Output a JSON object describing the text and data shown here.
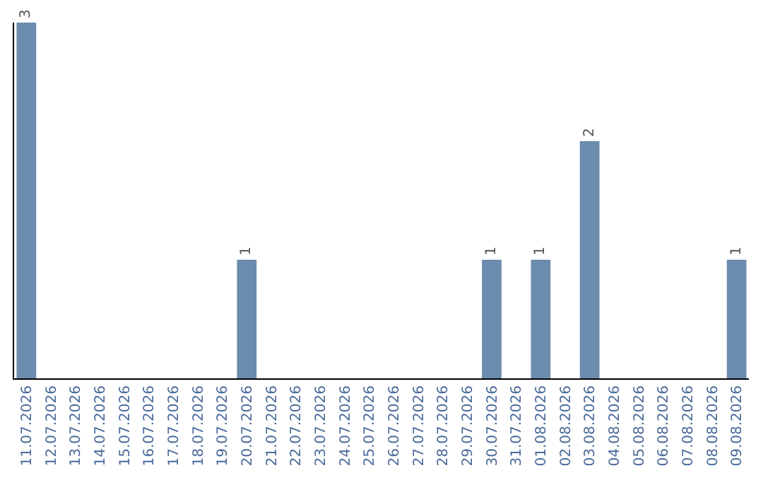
{
  "chart_data": {
    "type": "bar",
    "categories": [
      "11.07.2026",
      "12.07.2026",
      "13.07.2026",
      "14.07.2026",
      "15.07.2026",
      "16.07.2026",
      "17.07.2026",
      "18.07.2026",
      "19.07.2026",
      "20.07.2026",
      "21.07.2026",
      "22.07.2026",
      "23.07.2026",
      "24.07.2026",
      "25.07.2026",
      "26.07.2026",
      "27.07.2026",
      "28.07.2026",
      "29.07.2026",
      "30.07.2026",
      "31.07.2026",
      "01.08.2026",
      "02.08.2026",
      "03.08.2026",
      "04.08.2026",
      "05.08.2026",
      "06.08.2026",
      "07.08.2026",
      "08.08.2026",
      "09.08.2026"
    ],
    "values": [
      3,
      0,
      0,
      0,
      0,
      0,
      0,
      0,
      0,
      1,
      0,
      0,
      0,
      0,
      0,
      0,
      0,
      0,
      0,
      1,
      0,
      1,
      0,
      2,
      0,
      0,
      0,
      0,
      0,
      1
    ],
    "value_labels": [
      "3",
      null,
      null,
      null,
      null,
      null,
      null,
      null,
      null,
      "1",
      null,
      null,
      null,
      null,
      null,
      null,
      null,
      null,
      null,
      "1",
      null,
      "1",
      null,
      "2",
      null,
      null,
      null,
      null,
      null,
      "1"
    ],
    "color": "#6b8cad",
    "ylim": [
      0,
      3
    ],
    "tick_labels": "x"
  }
}
